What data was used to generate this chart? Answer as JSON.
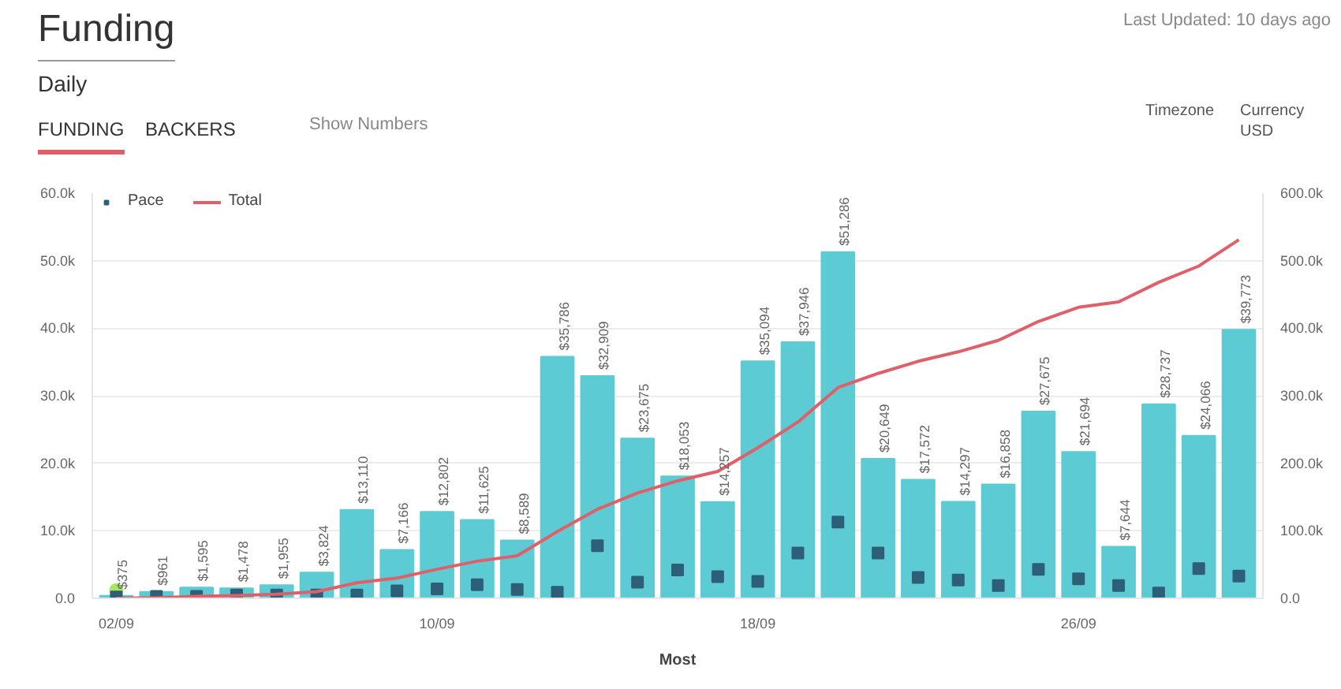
{
  "chart_data": {
    "type": "bar",
    "title": "Funding",
    "subtitle": "Daily",
    "annotations": [
      "Last Updated: 10 days ago",
      "FUNDING",
      "BACKERS",
      "Show Numbers",
      "Timezone",
      "Currency",
      "USD",
      "Most"
    ],
    "categories": [
      "02/09",
      null,
      null,
      null,
      null,
      null,
      null,
      null,
      "10/09",
      null,
      null,
      null,
      null,
      null,
      null,
      null,
      "18/09",
      null,
      null,
      null,
      null,
      null,
      null,
      null,
      "26/09",
      null,
      null,
      null,
      null
    ],
    "series": [
      {
        "color": "#5ccbd3",
        "values": [
          375,
          961,
          1595,
          1478,
          1955,
          3824,
          13110,
          7166,
          12802,
          11625,
          8589,
          35786,
          32909,
          23675,
          18053,
          14257,
          35094,
          37946,
          51286,
          20649,
          17572,
          14297,
          16858,
          27675,
          21694,
          7644,
          28737,
          24066,
          39773
        ],
        "value_labels": [
          "$375",
          "$961",
          "$1,595",
          "$1,478",
          "$1,955",
          "$3,824",
          "$13,110",
          "$7,166",
          "$12,802",
          "$11,625",
          "$8,589",
          "$35,786",
          "$32,909",
          "$23,675",
          "$18,053",
          "$14,257",
          "$35,094",
          "$37,946",
          "$51,286",
          "$20,649",
          "$17,572",
          "$14,297",
          "$16,858",
          "$27,675",
          "$21,694",
          "$7,644",
          "$28,737",
          "$24,066",
          "$39,773"
        ]
      },
      {
        "type": "scatter",
        "color": "#a6e85a",
        "marker": "circle",
        "values": [
          1200,
          null,
          null,
          null,
          null,
          null,
          null,
          null,
          null,
          null,
          null,
          null,
          null,
          null,
          null,
          null,
          null,
          null,
          null,
          null,
          null,
          null,
          null,
          null,
          null,
          null,
          null,
          null,
          null
        ]
      },
      {
        "type": "scatter",
        "name": "Pace",
        "color": "#2d5f78",
        "marker": "square",
        "values": [
          200,
          300,
          300,
          500,
          500,
          500,
          500,
          1100,
          1400,
          2000,
          1300,
          900,
          7800,
          2400,
          4200,
          3200,
          2500,
          6700,
          11300,
          6700,
          3100,
          2700,
          1900,
          4300,
          2900,
          1900,
          800,
          4400,
          3300
        ]
      },
      {
        "type": "line",
        "name": "Total",
        "axis": "y2",
        "color": "#e0606a",
        "values": [
          0,
          1000,
          3000,
          4000,
          6000,
          10000,
          23000,
          30000,
          43000,
          55000,
          63000,
          99000,
          132000,
          156000,
          174000,
          188000,
          223000,
          261000,
          312000,
          333000,
          351000,
          365000,
          382000,
          410000,
          431000,
          439000,
          468000,
          492000,
          531000
        ]
      }
    ],
    "ylim": [
      0,
      60000
    ],
    "yticks": [
      {
        "value": 0,
        "label": "0.0"
      },
      {
        "value": 10000,
        "label": "10.0k"
      },
      {
        "value": 20000,
        "label": "20.0k"
      },
      {
        "value": 30000,
        "label": "30.0k"
      },
      {
        "value": 40000,
        "label": "40.0k"
      },
      {
        "value": 50000,
        "label": "50.0k"
      },
      {
        "value": 60000,
        "label": "60.0k"
      }
    ],
    "y2lim": [
      0,
      600000
    ],
    "y2ticks": [
      {
        "value": 0,
        "label": "0.0"
      },
      {
        "value": 100000,
        "label": "100.0k"
      },
      {
        "value": 200000,
        "label": "200.0k"
      },
      {
        "value": 300000,
        "label": "300.0k"
      },
      {
        "value": 400000,
        "label": "400.0k"
      },
      {
        "value": 500000,
        "label": "500.0k"
      },
      {
        "value": 600000,
        "label": "600.0k"
      }
    ],
    "grid": "y",
    "legend": "top left"
  }
}
